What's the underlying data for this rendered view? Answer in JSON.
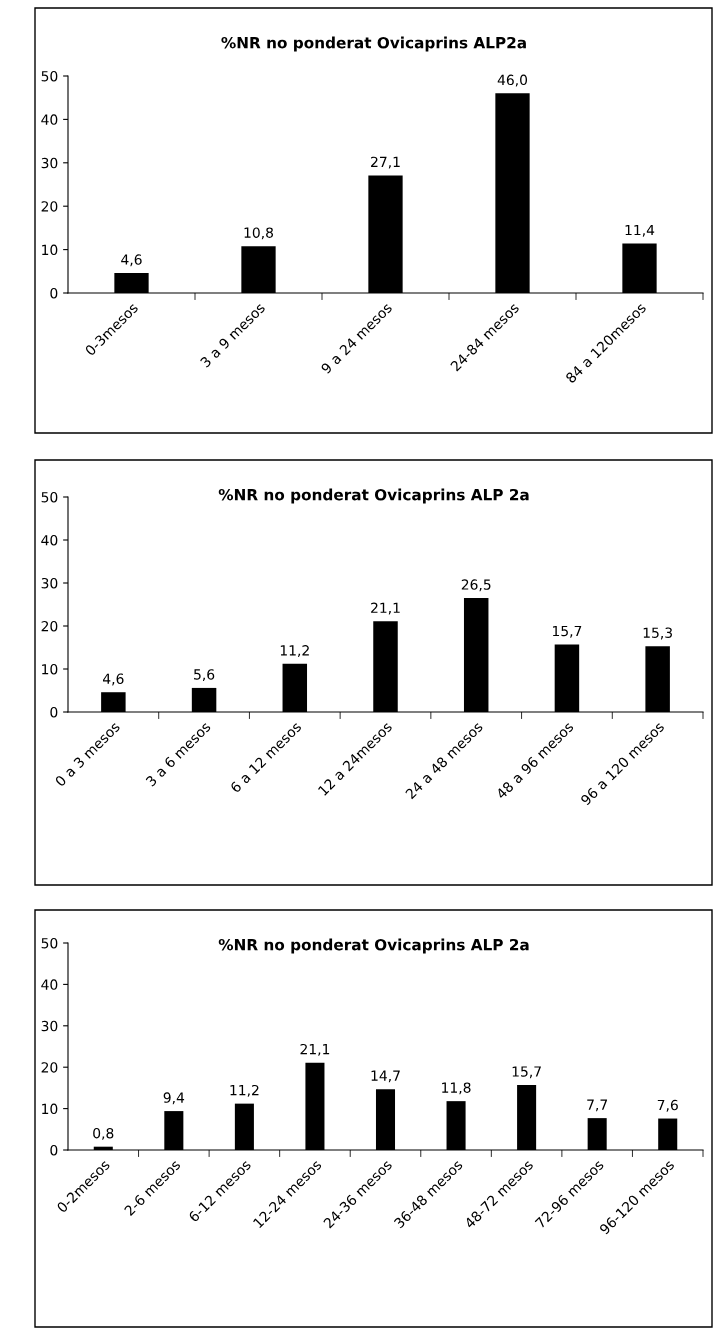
{
  "chart_data": [
    {
      "type": "bar",
      "title": "%NR no ponderat Ovicaprins ALP2a",
      "categories": [
        "0-3mesos",
        "3 a 9 mesos",
        "9 a 24 mesos",
        "24-84 mesos",
        "84 a 120mesos"
      ],
      "values": [
        4.6,
        10.8,
        27.1,
        46.0,
        11.4
      ],
      "value_labels": [
        "4,6",
        "10,8",
        "27,1",
        "46,0",
        "11,4"
      ],
      "color": "#000000",
      "ylim": [
        0,
        50
      ],
      "yticks": [
        0,
        10,
        20,
        30,
        40,
        50
      ]
    },
    {
      "type": "bar",
      "title": "%NR no ponderat Ovicaprins ALP 2a",
      "categories": [
        "0 a 3 mesos",
        "3 a 6 mesos",
        "6 a 12 mesos",
        "12 a 24mesos",
        "24 a 48 mesos",
        "48 a 96 mesos",
        "96 a 120 mesos"
      ],
      "values": [
        4.6,
        5.6,
        11.2,
        21.1,
        26.5,
        15.7,
        15.3
      ],
      "value_labels": [
        "4,6",
        "5,6",
        "11,2",
        "21,1",
        "26,5",
        "15,7",
        "15,3"
      ],
      "color": "#000000",
      "ylim": [
        0,
        50
      ],
      "yticks": [
        0,
        10,
        20,
        30,
        40,
        50
      ]
    },
    {
      "type": "bar",
      "title": "%NR no ponderat Ovicaprins ALP 2a",
      "categories": [
        "0-2mesos",
        "2-6 mesos",
        "6-12 mesos",
        "12-24 mesos",
        "24-36 mesos",
        "36-48 mesos",
        "48-72 mesos",
        "72-96 mesos",
        "96-120 mesos"
      ],
      "values": [
        0.8,
        9.4,
        11.2,
        21.1,
        14.7,
        11.8,
        15.7,
        7.7,
        7.6
      ],
      "value_labels": [
        "0,8",
        "9,4",
        "11,2",
        "21,1",
        "14,7",
        "11,8",
        "15,7",
        "7,7",
        "7,6"
      ],
      "color": "#000000",
      "ylim": [
        0,
        50
      ],
      "yticks": [
        0,
        10,
        20,
        30,
        40,
        50
      ]
    }
  ]
}
